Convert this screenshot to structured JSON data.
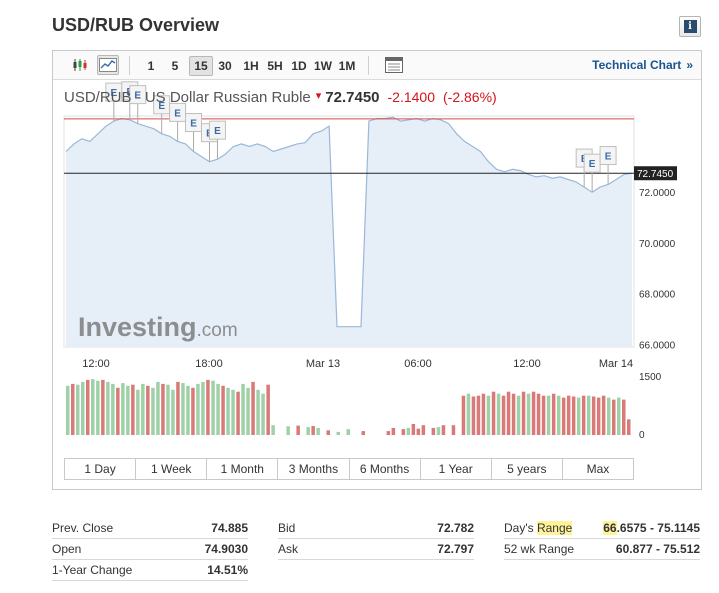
{
  "page_title": "USD/RUB Overview",
  "info_icon": "info-icon",
  "toolbar": {
    "icons": [
      "candlestick-icon",
      "area-chart-icon",
      "calendar-icon"
    ],
    "intervals": [
      "1",
      "5",
      "15",
      "30",
      "1H",
      "5H",
      "1D",
      "1W",
      "1M"
    ],
    "active_interval": "15",
    "technical_chart_label": "Technical Chart",
    "technical_chart_chevron": "»"
  },
  "quote": {
    "name": "USD/RUB - US Dollar Russian Ruble",
    "arrow": "▾",
    "price": "72.7450",
    "change": "-2.1400",
    "change_pct": "(-2.86%)"
  },
  "watermark": {
    "main": "Investing",
    "suffix": ".com"
  },
  "chart_data": {
    "type": "area",
    "x_ticks": [
      "12:00",
      "18:00",
      "Mar 13",
      "06:00",
      "12:00",
      "Mar 14"
    ],
    "y_ticks": [
      "72.0000",
      "70.0000",
      "68.0000",
      "66.0000"
    ],
    "ylim": [
      65.9,
      75.0
    ],
    "current_price_label": "72.7450",
    "current_price": 72.745,
    "prev_close": 74.885,
    "series": [
      {
        "values": [
          73.6,
          73.9,
          74.1,
          74.0,
          74.3,
          74.6,
          74.8,
          74.9,
          74.85,
          74.7,
          74.6,
          74.5,
          74.3,
          74.2,
          74.0,
          73.9,
          73.6,
          73.4,
          73.2,
          73.3,
          73.5,
          73.8,
          73.9,
          73.8,
          73.9,
          73.8,
          73.6,
          73.7,
          73.8,
          73.9,
          73.95,
          74.3,
          74.4,
          74.6,
          66.7,
          66.7,
          66.7,
          66.7,
          74.8,
          74.9,
          74.9,
          74.95,
          74.8,
          74.85,
          74.9,
          74.8,
          74.9,
          74.85,
          74.7,
          74.3,
          74.0,
          73.8,
          73.6,
          73.2,
          72.9,
          72.8,
          72.9,
          72.85,
          72.7,
          72.6,
          72.65,
          72.55,
          72.6,
          72.5,
          72.4,
          72.2,
          72.0,
          72.2,
          72.3,
          72.5,
          72.7,
          72.745
        ]
      }
    ],
    "volume": {
      "axis_ticks": [
        "1500",
        "0"
      ],
      "ylim": [
        0,
        1500
      ],
      "values": [
        1250,
        1300,
        1280,
        1350,
        1400,
        1420,
        1380,
        1400,
        1350,
        1300,
        1200,
        1320,
        1250,
        1280,
        1150,
        1300,
        1250,
        1200,
        1350,
        1300,
        1280,
        1150,
        1350,
        1320,
        1250,
        1200,
        1300,
        1350,
        1400,
        1380,
        1300,
        1250,
        1200,
        1150,
        1100,
        1300,
        1200,
        1350,
        1150,
        1050,
        1280,
        250,
        0,
        0,
        220,
        0,
        240,
        0,
        200,
        230,
        180,
        0,
        120,
        0,
        80,
        0,
        150,
        0,
        0,
        100,
        0,
        0,
        0,
        0,
        100,
        180,
        0,
        150,
        180,
        280,
        160,
        250,
        0,
        180,
        200,
        250,
        0,
        250,
        0,
        1000,
        1050,
        980,
        1000,
        1050,
        1000,
        1100,
        1050,
        1000,
        1100,
        1050,
        1000,
        1100,
        1050,
        1100,
        1050,
        1000,
        1000,
        1050,
        1000,
        950,
        1000,
        980,
        950,
        1000,
        1000,
        980,
        950,
        1000,
        950,
        900,
        950,
        900,
        400
      ],
      "colors_up": "#9fd1a8",
      "colors_down": "#d97a78"
    },
    "events": [
      {
        "index": 6,
        "label": "E"
      },
      {
        "index": 8,
        "label": "E"
      },
      {
        "index": 9,
        "label": "E"
      },
      {
        "index": 12,
        "label": "E"
      },
      {
        "index": 14,
        "label": "E"
      },
      {
        "index": 16,
        "label": "E"
      },
      {
        "index": 18,
        "label": "E"
      },
      {
        "index": 19,
        "label": "E"
      },
      {
        "index": 65,
        "label": "E"
      },
      {
        "index": 66,
        "label": "E"
      },
      {
        "index": 68,
        "label": "E"
      }
    ]
  },
  "range_tabs": [
    "1 Day",
    "1 Week",
    "1 Month",
    "3 Months",
    "6 Months",
    "1 Year",
    "5 years",
    "Max"
  ],
  "stats": {
    "col1": [
      {
        "label": "Prev. Close",
        "value": "74.885"
      },
      {
        "label": "Open",
        "value": "74.9030"
      },
      {
        "label": "1-Year Change",
        "value": "14.51%"
      }
    ],
    "col2": [
      {
        "label": "Bid",
        "value": "72.782"
      },
      {
        "label": "Ask",
        "value": "72.797"
      }
    ],
    "col3": [
      {
        "label_pre": "Day's ",
        "label_hl": "Range",
        "value_hl": "66",
        "value_rest": ".6575 - 75.1145"
      },
      {
        "label": "52 wk Range",
        "value": "60.877 - 75.512"
      }
    ]
  },
  "colors": {
    "area_fill": "#e6eef8",
    "line": "#9bb8d8",
    "prev_close_line": "#d94a4a",
    "price_line": "#222222",
    "link": "#1a5490",
    "negative": "#d4141b"
  }
}
